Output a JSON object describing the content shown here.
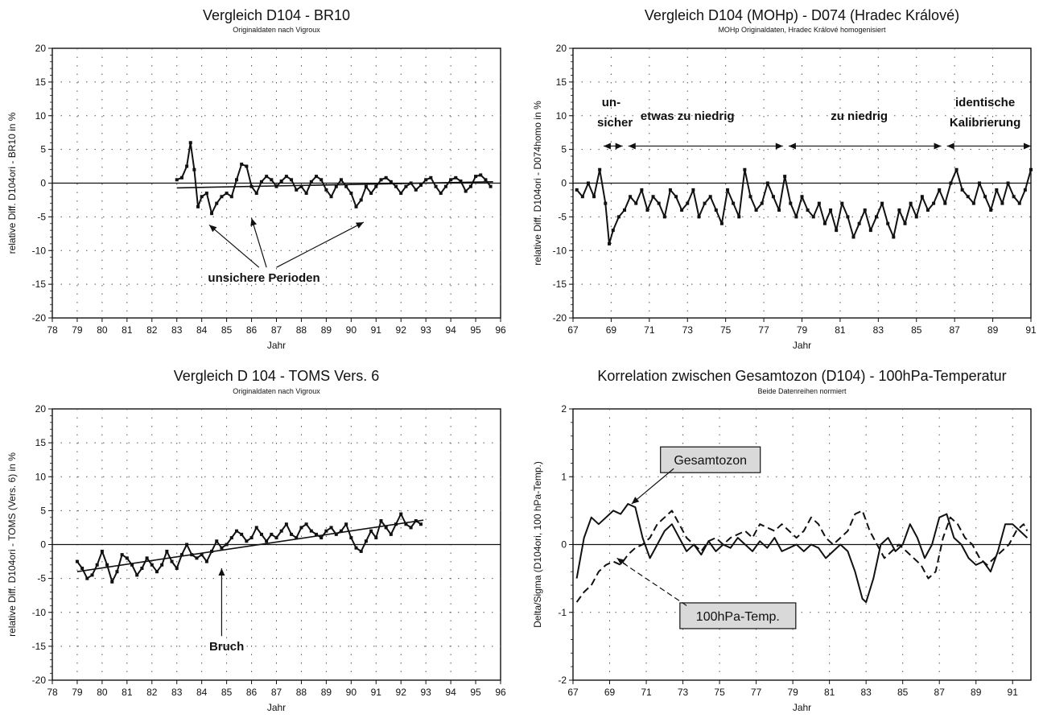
{
  "chart_data": [
    {
      "type": "line",
      "title": "Vergleich D104 - BR10",
      "subtitle": "Originaldaten nach Vigroux",
      "xlabel": "Jahr",
      "ylabel": "relative Diff. D104ori - BR10 in %",
      "xlim": [
        78,
        96
      ],
      "ylim": [
        -20,
        20
      ],
      "xticks": [
        "78",
        "79",
        "80",
        "81",
        "82",
        "83",
        "84",
        "85",
        "86",
        "87",
        "88",
        "89",
        "90",
        "91",
        "92",
        "93",
        "94",
        "95",
        "96"
      ],
      "yticks": [
        "20",
        "15",
        "10",
        "5",
        "0",
        "-5",
        "-10",
        "-15",
        "-20"
      ],
      "grid": true,
      "series": [
        {
          "x": [
            83.0,
            83.2,
            83.4,
            83.55,
            83.7,
            83.85,
            84.0,
            84.2,
            84.4,
            84.6,
            84.8,
            85.0,
            85.2,
            85.4,
            85.6,
            85.8,
            86.0,
            86.2,
            86.4,
            86.6,
            86.8,
            87.0,
            87.2,
            87.4,
            87.6,
            87.8,
            88.0,
            88.2,
            88.4,
            88.6,
            88.8,
            89.0,
            89.2,
            89.4,
            89.6,
            89.8,
            90.0,
            90.2,
            90.4,
            90.6,
            90.8,
            91.0,
            91.2,
            91.4,
            91.6,
            91.8,
            92.0,
            92.2,
            92.4,
            92.6,
            92.8,
            93.0,
            93.2,
            93.4,
            93.6,
            93.8,
            94.0,
            94.2,
            94.4,
            94.6,
            94.8,
            95.0,
            95.2,
            95.4,
            95.6
          ],
          "y": [
            0.5,
            0.8,
            2.5,
            6.0,
            2.0,
            -3.5,
            -2.0,
            -1.5,
            -4.5,
            -3.0,
            -2.0,
            -1.5,
            -2.0,
            0.5,
            2.8,
            2.5,
            -0.5,
            -1.5,
            0.2,
            1.0,
            0.5,
            -0.5,
            0.3,
            1.0,
            0.5,
            -1.0,
            -0.5,
            -1.5,
            0.2,
            1.0,
            0.5,
            -1.0,
            -2.0,
            -0.5,
            0.5,
            -0.5,
            -1.5,
            -3.5,
            -2.5,
            -0.5,
            -1.5,
            -0.5,
            0.5,
            0.8,
            0.2,
            -0.5,
            -1.5,
            -0.5,
            0.0,
            -1.0,
            -0.3,
            0.5,
            0.8,
            -0.5,
            -1.5,
            -0.5,
            0.5,
            0.8,
            0.3,
            -1.2,
            -0.5,
            1.0,
            1.2,
            0.5,
            -0.5
          ]
        },
        {
          "x": [
            83.0,
            95.7
          ],
          "y": [
            -0.7,
            0.2
          ]
        }
      ],
      "annotations": [
        {
          "text": "unsichere Perioden",
          "x": 86.5,
          "y": -14
        }
      ]
    },
    {
      "type": "line",
      "title": "Vergleich D104 (MOHp) - D074 (Hradec Králové)",
      "subtitle": "MOHp Originaldaten, Hradec Králové homogenisiert",
      "xlabel": "Jahr",
      "ylabel": "relative Diff. D104ori - D074homo in %",
      "xlim": [
        67,
        91
      ],
      "ylim": [
        -20,
        20
      ],
      "xticks": [
        "67",
        "69",
        "71",
        "73",
        "75",
        "77",
        "79",
        "81",
        "83",
        "85",
        "87",
        "89",
        "91"
      ],
      "yticks": [
        "20",
        "15",
        "10",
        "5",
        "0",
        "-5",
        "-10",
        "-15",
        "-20"
      ],
      "grid": true,
      "series": [
        {
          "x": [
            67.2,
            67.5,
            67.8,
            68.1,
            68.4,
            68.7,
            68.9,
            69.1,
            69.4,
            69.7,
            70.0,
            70.3,
            70.6,
            70.9,
            71.2,
            71.5,
            71.8,
            72.1,
            72.4,
            72.7,
            73.0,
            73.3,
            73.6,
            73.9,
            74.2,
            74.5,
            74.8,
            75.1,
            75.4,
            75.7,
            76.0,
            76.3,
            76.6,
            76.9,
            77.2,
            77.5,
            77.8,
            78.1,
            78.4,
            78.7,
            79.0,
            79.3,
            79.6,
            79.9,
            80.2,
            80.5,
            80.8,
            81.1,
            81.4,
            81.7,
            82.0,
            82.3,
            82.6,
            82.9,
            83.2,
            83.5,
            83.8,
            84.1,
            84.4,
            84.7,
            85.0,
            85.3,
            85.6,
            85.9,
            86.2,
            86.5,
            86.8,
            87.1,
            87.4,
            87.7,
            88.0,
            88.3,
            88.6,
            88.9,
            89.2,
            89.5,
            89.8,
            90.1,
            90.4,
            90.7,
            91.0
          ],
          "y": [
            -1,
            -2,
            0,
            -2,
            2,
            -3,
            -9,
            -7,
            -5,
            -4,
            -2,
            -3,
            -1,
            -4,
            -2,
            -3,
            -5,
            -1,
            -2,
            -4,
            -3,
            -1,
            -5,
            -3,
            -2,
            -4,
            -6,
            -1,
            -3,
            -5,
            2,
            -2,
            -4,
            -3,
            0,
            -2,
            -4,
            1,
            -3,
            -5,
            -2,
            -4,
            -5,
            -3,
            -6,
            -4,
            -7,
            -3,
            -5,
            -8,
            -6,
            -4,
            -7,
            -5,
            -3,
            -6,
            -8,
            -4,
            -6,
            -3,
            -5,
            -2,
            -4,
            -3,
            -1,
            -3,
            0,
            2,
            -1,
            -2,
            -3,
            0,
            -2,
            -4,
            -1,
            -3,
            0,
            -2,
            -3,
            -1,
            2
          ]
        }
      ],
      "annotations": [
        {
          "text": "un-",
          "x": 69.0,
          "y": 12
        },
        {
          "text": "sicher",
          "x": 69.2,
          "y": 9
        },
        {
          "text": "etwas zu niedrig",
          "x": 73.0,
          "y": 10
        },
        {
          "text": "zu niedrig",
          "x": 82.0,
          "y": 10
        },
        {
          "text": "identische",
          "x": 88.6,
          "y": 12
        },
        {
          "text": "Kalibrierung",
          "x": 88.6,
          "y": 9
        }
      ]
    },
    {
      "type": "line",
      "title": "Vergleich D 104 - TOMS Vers. 6",
      "subtitle": "Originaldaten nach Vigroux",
      "xlabel": "Jahr",
      "ylabel": "relative Diff. D104ori - TOMS (Vers. 6) in %",
      "xlim": [
        78,
        96
      ],
      "ylim": [
        -20,
        20
      ],
      "xticks": [
        "78",
        "79",
        "80",
        "81",
        "82",
        "83",
        "84",
        "85",
        "86",
        "87",
        "88",
        "89",
        "90",
        "91",
        "92",
        "93",
        "94",
        "95",
        "96"
      ],
      "yticks": [
        "20",
        "15",
        "10",
        "5",
        "0",
        "-5",
        "-10",
        "-15",
        "-20"
      ],
      "grid": true,
      "series": [
        {
          "x": [
            79.0,
            79.2,
            79.4,
            79.6,
            79.8,
            80.0,
            80.2,
            80.4,
            80.6,
            80.8,
            81.0,
            81.2,
            81.4,
            81.6,
            81.8,
            82.0,
            82.2,
            82.4,
            82.6,
            82.8,
            83.0,
            83.2,
            83.4,
            83.6,
            83.8,
            84.0,
            84.2,
            84.4,
            84.6,
            84.8,
            85.0,
            85.2,
            85.4,
            85.6,
            85.8,
            86.0,
            86.2,
            86.4,
            86.6,
            86.8,
            87.0,
            87.2,
            87.4,
            87.6,
            87.8,
            88.0,
            88.2,
            88.4,
            88.6,
            88.8,
            89.0,
            89.2,
            89.4,
            89.6,
            89.8,
            90.0,
            90.2,
            90.4,
            90.6,
            90.8,
            91.0,
            91.2,
            91.4,
            91.6,
            91.8,
            92.0,
            92.2,
            92.4,
            92.6,
            92.8
          ],
          "y": [
            -2.5,
            -3.5,
            -5,
            -4.5,
            -3,
            -1,
            -3,
            -5.5,
            -4,
            -1.5,
            -2,
            -3,
            -4.5,
            -3.5,
            -2,
            -3,
            -4,
            -3,
            -1,
            -2.5,
            -3.5,
            -1.5,
            0,
            -1.5,
            -2,
            -1.5,
            -2.5,
            -1,
            0.5,
            -0.5,
            0,
            1,
            2,
            1.5,
            0.5,
            1,
            2.5,
            1.5,
            0.5,
            1.5,
            1,
            2,
            3,
            1.5,
            1,
            2.5,
            3,
            2,
            1.5,
            1,
            2,
            2.5,
            1.5,
            2,
            3,
            1,
            -0.5,
            -1,
            0.5,
            2,
            1,
            3.5,
            2.5,
            1.5,
            3,
            4.5,
            3,
            2.5,
            3.5,
            3
          ]
        },
        {
          "x": [
            79.0,
            92.9
          ],
          "y": [
            -4.0,
            3.6
          ]
        }
      ],
      "annotations": [
        {
          "text": "Bruch",
          "x": 85.0,
          "y": -15
        }
      ]
    },
    {
      "type": "line",
      "title": "Korrelation zwischen Gesamtozon (D104) - 100hPa-Temperatur",
      "subtitle": "Beide Datenreihen normiert",
      "xlabel": "Jahr",
      "ylabel": "Delta/Sigma (D104ori, 100 hPa-Temp.)",
      "xlim": [
        67,
        92
      ],
      "ylim": [
        -2,
        2
      ],
      "xticks": [
        "67",
        "69",
        "71",
        "73",
        "75",
        "77",
        "79",
        "81",
        "83",
        "85",
        "87",
        "89",
        "91"
      ],
      "yticks": [
        "2",
        "1",
        "0",
        "-1",
        "-2"
      ],
      "grid": true,
      "series": [
        {
          "name": "Gesamtozon",
          "x": [
            67.2,
            67.6,
            68.0,
            68.4,
            68.8,
            69.2,
            69.6,
            70.0,
            70.4,
            70.8,
            71.2,
            71.6,
            72.0,
            72.4,
            72.8,
            73.2,
            73.6,
            74.0,
            74.4,
            74.8,
            75.2,
            75.6,
            76.0,
            76.4,
            76.8,
            77.2,
            77.6,
            78.0,
            78.4,
            78.8,
            79.2,
            79.6,
            80.0,
            80.4,
            80.8,
            81.2,
            81.6,
            82.0,
            82.4,
            82.8,
            83.0,
            83.4,
            83.8,
            84.2,
            84.6,
            85.0,
            85.4,
            85.8,
            86.2,
            86.6,
            87.0,
            87.4,
            87.8,
            88.2,
            88.6,
            89.0,
            89.4,
            89.8,
            90.2,
            90.6,
            91.0,
            91.4,
            91.8
          ],
          "y": [
            -0.5,
            0.1,
            0.4,
            0.3,
            0.4,
            0.5,
            0.45,
            0.6,
            0.55,
            0.1,
            -0.2,
            0.0,
            0.2,
            0.3,
            0.1,
            -0.1,
            0.0,
            -0.15,
            0.05,
            -0.1,
            0.0,
            -0.05,
            0.1,
            0.0,
            -0.1,
            0.05,
            -0.05,
            0.1,
            -0.1,
            -0.05,
            0.0,
            -0.1,
            0.0,
            -0.05,
            -0.2,
            -0.1,
            0.0,
            -0.1,
            -0.4,
            -0.8,
            -0.85,
            -0.5,
            0.0,
            0.1,
            -0.1,
            0.0,
            0.3,
            0.1,
            -0.2,
            0.0,
            0.4,
            0.45,
            0.1,
            0.0,
            -0.2,
            -0.3,
            -0.25,
            -0.4,
            -0.1,
            0.3,
            0.3,
            0.2,
            0.1
          ]
        },
        {
          "name": "100hPa-Temp.",
          "x": [
            67.2,
            67.6,
            68.0,
            68.4,
            68.8,
            69.2,
            69.6,
            70.0,
            70.4,
            70.8,
            71.2,
            71.6,
            72.0,
            72.4,
            72.8,
            73.2,
            73.6,
            74.0,
            74.4,
            74.8,
            75.2,
            75.6,
            76.0,
            76.4,
            76.8,
            77.2,
            77.6,
            78.0,
            78.4,
            78.8,
            79.2,
            79.6,
            80.0,
            80.4,
            80.8,
            81.2,
            81.6,
            82.0,
            82.4,
            82.8,
            83.2,
            83.6,
            84.0,
            84.4,
            84.8,
            85.2,
            85.6,
            86.0,
            86.4,
            86.8,
            87.2,
            87.6,
            88.0,
            88.4,
            88.8,
            89.2,
            89.6,
            90.0,
            90.4,
            90.8,
            91.2,
            91.6,
            91.8
          ],
          "y": [
            -0.85,
            -0.7,
            -0.6,
            -0.4,
            -0.3,
            -0.25,
            -0.3,
            -0.15,
            -0.05,
            0.0,
            0.1,
            0.3,
            0.4,
            0.5,
            0.3,
            0.1,
            0.0,
            -0.1,
            0.05,
            0.1,
            0.0,
            0.1,
            0.15,
            0.2,
            0.1,
            0.3,
            0.25,
            0.2,
            0.3,
            0.2,
            0.1,
            0.2,
            0.4,
            0.3,
            0.1,
            0.0,
            0.1,
            0.2,
            0.45,
            0.5,
            0.2,
            0.0,
            -0.2,
            -0.1,
            0.0,
            -0.1,
            -0.2,
            -0.3,
            -0.5,
            -0.4,
            0.1,
            0.4,
            0.3,
            0.1,
            0.0,
            -0.2,
            -0.3,
            -0.2,
            -0.1,
            0.0,
            0.2,
            0.3,
            0.2
          ]
        }
      ],
      "annotations": [
        {
          "text": "Gesamtozon",
          "x": 74.5,
          "y": 1.25
        },
        {
          "text": "100hPa-Temp.",
          "x": 76.0,
          "y": -1.05
        }
      ]
    }
  ]
}
